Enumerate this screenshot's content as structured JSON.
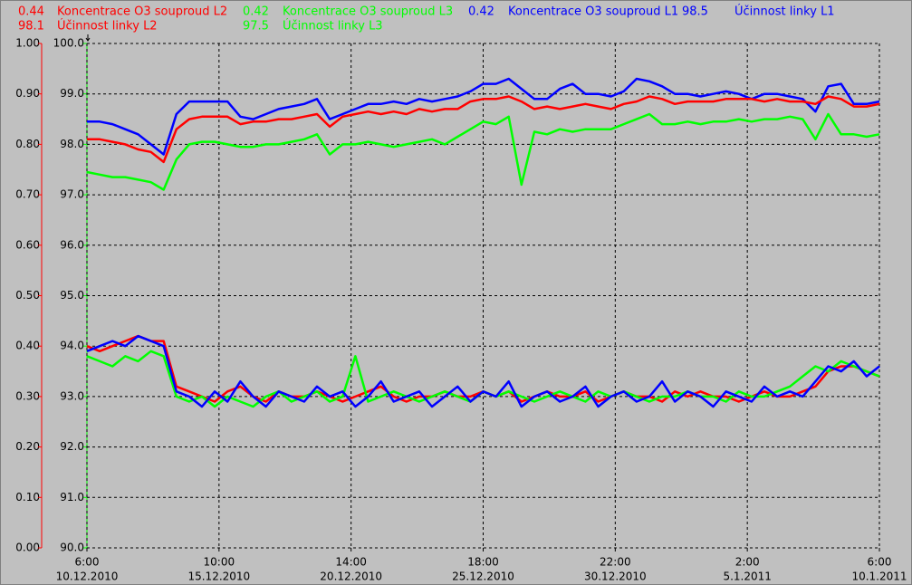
{
  "chart_data": {
    "type": "line",
    "x": [
      "2010-12-10T06:00",
      "2010-12-10T18:00",
      "2010-12-11T06:00",
      "2010-12-11T18:00",
      "2010-12-12T06:00",
      "2010-12-12T18:00",
      "2010-12-13T06:00",
      "2010-12-13T18:00",
      "2010-12-14T06:00",
      "2010-12-14T18:00",
      "2010-12-15T06:00",
      "2010-12-15T18:00",
      "2010-12-16T06:00",
      "2010-12-16T18:00",
      "2010-12-17T06:00",
      "2010-12-17T18:00",
      "2010-12-18T06:00",
      "2010-12-18T18:00",
      "2010-12-19T06:00",
      "2010-12-19T18:00",
      "2010-12-20T06:00",
      "2010-12-20T18:00",
      "2010-12-21T06:00",
      "2010-12-21T18:00",
      "2010-12-22T06:00",
      "2010-12-22T18:00",
      "2010-12-23T06:00",
      "2010-12-23T18:00",
      "2010-12-24T06:00",
      "2010-12-24T18:00",
      "2010-12-25T06:00",
      "2010-12-25T18:00",
      "2010-12-26T06:00",
      "2010-12-26T18:00",
      "2010-12-27T06:00",
      "2010-12-27T18:00",
      "2010-12-28T06:00",
      "2010-12-28T18:00",
      "2010-12-29T06:00",
      "2010-12-29T18:00",
      "2010-12-30T06:00",
      "2010-12-30T18:00",
      "2010-12-31T06:00",
      "2010-12-31T18:00",
      "2011-01-01T06:00",
      "2011-01-01T18:00",
      "2011-01-02T06:00",
      "2011-01-02T18:00",
      "2011-01-03T06:00",
      "2011-01-03T18:00",
      "2011-01-04T06:00",
      "2011-01-04T18:00",
      "2011-01-05T06:00",
      "2011-01-05T18:00",
      "2011-01-06T06:00",
      "2011-01-06T18:00",
      "2011-01-07T06:00",
      "2011-01-07T18:00",
      "2011-01-08T06:00",
      "2011-01-08T18:00",
      "2011-01-09T06:00",
      "2011-01-09T18:00",
      "2011-01-10T06:00"
    ],
    "xlim": [
      "2010-12-10T06:00",
      "2011-01-10T06:00"
    ],
    "xticks": [
      {
        "value": "2010-12-10T06:00",
        "label": [
          "6:00",
          "10.12.2010"
        ]
      },
      {
        "value": "2010-12-15T10:00",
        "label": [
          "10:00",
          "15.12.2010"
        ]
      },
      {
        "value": "2010-12-20T14:00",
        "label": [
          "14:00",
          "20.12.2010"
        ]
      },
      {
        "value": "2010-12-25T18:00",
        "label": [
          "18:00",
          "25.12.2010"
        ]
      },
      {
        "value": "2010-12-30T22:00",
        "label": [
          "22:00",
          "30.12.2010"
        ]
      },
      {
        "value": "2011-01-05T02:00",
        "label": [
          "2:00",
          "5.1.2011"
        ]
      },
      {
        "value": "2011-01-10T06:00",
        "label": [
          "6:00",
          "10.1.2011"
        ]
      }
    ],
    "ylim": [
      0,
      1
    ],
    "yticks": [
      {
        "value": 0,
        "label": "0.00"
      },
      {
        "value": 0.1,
        "label": "0.10"
      },
      {
        "value": 0.2,
        "label": "0.20"
      },
      {
        "value": 0.3,
        "label": "0.30"
      },
      {
        "value": 0.4,
        "label": "0.40"
      },
      {
        "value": 0.5,
        "label": "0.50"
      },
      {
        "value": 0.6,
        "label": "0.60"
      },
      {
        "value": 0.7,
        "label": "0.70"
      },
      {
        "value": 0.8,
        "label": "0.80"
      },
      {
        "value": 0.9,
        "label": "0.90"
      },
      {
        "value": 1,
        "label": "1.00"
      }
    ],
    "y2lim": [
      90,
      100
    ],
    "y2ticks": [
      {
        "value": 90,
        "label": "90.0"
      },
      {
        "value": 91,
        "label": "91.0"
      },
      {
        "value": 92,
        "label": "92.0"
      },
      {
        "value": 93,
        "label": "93.0"
      },
      {
        "value": 94,
        "label": "94.0"
      },
      {
        "value": 95,
        "label": "95.0"
      },
      {
        "value": 96,
        "label": "96.0"
      },
      {
        "value": 97,
        "label": "97.0"
      },
      {
        "value": 98,
        "label": "98.0"
      },
      {
        "value": 99,
        "label": "99.0"
      },
      {
        "value": 100,
        "label": "100.0"
      }
    ],
    "grid": true,
    "series": [
      {
        "name": "Koncentrace O3 souproud L2",
        "current": 0.44,
        "color": "#ff0000",
        "values": [
          0.4,
          0.39,
          0.4,
          0.41,
          0.42,
          0.41,
          0.41,
          0.32,
          0.31,
          0.3,
          0.29,
          0.31,
          0.32,
          0.3,
          0.29,
          0.31,
          0.3,
          0.3,
          0.31,
          0.3,
          0.29,
          0.3,
          0.31,
          0.32,
          0.3,
          0.29,
          0.3,
          0.3,
          0.31,
          0.3,
          0.3,
          0.31,
          0.3,
          0.31,
          0.29,
          0.3,
          0.31,
          0.3,
          0.3,
          0.31,
          0.29,
          0.3,
          0.31,
          0.3,
          0.3,
          0.29,
          0.31,
          0.3,
          0.31,
          0.3,
          0.3,
          0.29,
          0.3,
          0.31,
          0.3,
          0.3,
          0.31,
          0.32,
          0.35,
          0.36,
          0.36,
          0.35,
          0.34
        ]
      },
      {
        "name": "Koncentrace O3 souproud L3",
        "current": 0.42,
        "color": "#00ff00",
        "values": [
          0.38,
          0.37,
          0.36,
          0.38,
          0.37,
          0.39,
          0.38,
          0.3,
          0.29,
          0.3,
          0.28,
          0.3,
          0.29,
          0.28,
          0.3,
          0.31,
          0.29,
          0.3,
          0.31,
          0.29,
          0.3,
          0.38,
          0.29,
          0.3,
          0.31,
          0.3,
          0.29,
          0.3,
          0.31,
          0.3,
          0.29,
          0.31,
          0.3,
          0.31,
          0.3,
          0.29,
          0.3,
          0.31,
          0.3,
          0.29,
          0.31,
          0.3,
          0.31,
          0.3,
          0.29,
          0.3,
          0.3,
          0.31,
          0.3,
          0.3,
          0.29,
          0.31,
          0.3,
          0.3,
          0.31,
          0.32,
          0.34,
          0.36,
          0.35,
          0.37,
          0.36,
          0.35,
          0.34
        ]
      },
      {
        "name": "Koncentrace O3 souproud L1",
        "current": 0.42,
        "color": "#0000ff",
        "values": [
          0.39,
          0.4,
          0.41,
          0.4,
          0.42,
          0.41,
          0.4,
          0.31,
          0.3,
          0.28,
          0.31,
          0.29,
          0.33,
          0.3,
          0.28,
          0.31,
          0.3,
          0.29,
          0.32,
          0.3,
          0.31,
          0.28,
          0.3,
          0.33,
          0.29,
          0.3,
          0.31,
          0.28,
          0.3,
          0.32,
          0.29,
          0.31,
          0.3,
          0.33,
          0.28,
          0.3,
          0.31,
          0.29,
          0.3,
          0.32,
          0.28,
          0.3,
          0.31,
          0.29,
          0.3,
          0.33,
          0.29,
          0.31,
          0.3,
          0.28,
          0.31,
          0.3,
          0.29,
          0.32,
          0.3,
          0.31,
          0.3,
          0.33,
          0.36,
          0.35,
          0.37,
          0.34,
          0.36
        ]
      },
      {
        "name": "Účinnost linky L1",
        "current": 98.5,
        "color": "#0000ff",
        "axis": "y2",
        "values": [
          98.45,
          98.45,
          98.4,
          98.3,
          98.2,
          98.0,
          97.8,
          98.6,
          98.85,
          98.85,
          98.85,
          98.85,
          98.55,
          98.5,
          98.6,
          98.7,
          98.75,
          98.8,
          98.9,
          98.5,
          98.6,
          98.7,
          98.8,
          98.8,
          98.85,
          98.8,
          98.9,
          98.85,
          98.9,
          98.95,
          99.05,
          99.2,
          99.2,
          99.3,
          99.1,
          98.9,
          98.9,
          99.1,
          99.2,
          99.0,
          99.0,
          98.95,
          99.05,
          99.3,
          99.25,
          99.15,
          99.0,
          99.0,
          98.95,
          99.0,
          99.05,
          99.0,
          98.9,
          99.0,
          99.0,
          98.95,
          98.9,
          98.65,
          99.15,
          99.2,
          98.8,
          98.8,
          98.85
        ]
      },
      {
        "name": "Účinnost linky L2",
        "current": 98.1,
        "color": "#ff0000",
        "axis": "y2",
        "values": [
          98.1,
          98.1,
          98.05,
          98.0,
          97.9,
          97.85,
          97.65,
          98.3,
          98.5,
          98.55,
          98.55,
          98.55,
          98.4,
          98.45,
          98.45,
          98.5,
          98.5,
          98.55,
          98.6,
          98.35,
          98.55,
          98.6,
          98.65,
          98.6,
          98.65,
          98.6,
          98.7,
          98.65,
          98.7,
          98.7,
          98.85,
          98.9,
          98.9,
          98.95,
          98.85,
          98.7,
          98.75,
          98.7,
          98.75,
          98.8,
          98.75,
          98.7,
          98.8,
          98.85,
          98.95,
          98.9,
          98.8,
          98.85,
          98.85,
          98.85,
          98.9,
          98.9,
          98.9,
          98.85,
          98.9,
          98.85,
          98.85,
          98.8,
          98.95,
          98.9,
          98.75,
          98.75,
          98.8
        ]
      },
      {
        "name": "Účinnost linky L3",
        "current": 97.5,
        "color": "#00ff00",
        "axis": "y2",
        "values": [
          97.45,
          97.4,
          97.35,
          97.35,
          97.3,
          97.25,
          97.1,
          97.7,
          98.0,
          98.05,
          98.05,
          98.0,
          97.95,
          97.95,
          98.0,
          98.0,
          98.05,
          98.1,
          98.2,
          97.8,
          98.0,
          98.0,
          98.05,
          98.0,
          97.95,
          98.0,
          98.05,
          98.1,
          98.0,
          98.15,
          98.3,
          98.45,
          98.4,
          98.55,
          97.2,
          98.25,
          98.2,
          98.3,
          98.25,
          98.3,
          98.3,
          98.3,
          98.4,
          98.5,
          98.6,
          98.4,
          98.4,
          98.45,
          98.4,
          98.45,
          98.45,
          98.5,
          98.45,
          98.5,
          98.5,
          98.55,
          98.5,
          98.1,
          98.6,
          98.2,
          98.2,
          98.15,
          98.2
        ]
      }
    ]
  }
}
